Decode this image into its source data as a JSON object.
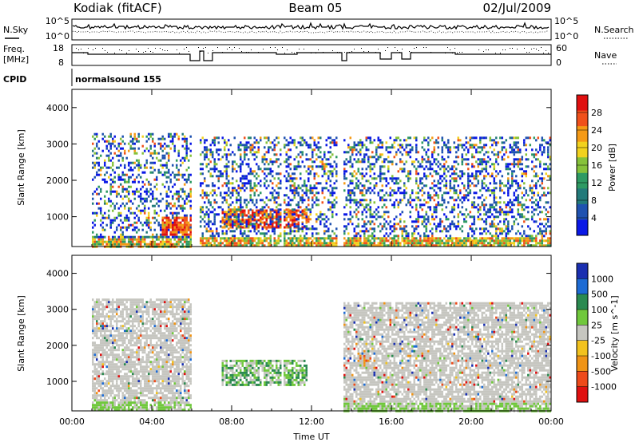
{
  "header": {
    "title_left": "Kodiak (fitACF)",
    "title_center": "Beam 05",
    "title_right": "02/Jul/2009"
  },
  "noise_panel": {
    "left_label": "N.Sky",
    "right_label": "N.Search",
    "ticks_left": [
      "10^5",
      "10^0"
    ],
    "ticks_right": [
      "10^5",
      "10^0"
    ]
  },
  "freq_panel": {
    "left_label_1": "Freq.",
    "left_label_2": "[MHz]",
    "right_label": "Nave",
    "ticks_left": [
      "18",
      "8"
    ],
    "ticks_right": [
      "60",
      "0"
    ]
  },
  "cpid": {
    "label": "CPID",
    "value": "normalsound 155"
  },
  "colors": {
    "power_scale": [
      "#0a18e6",
      "#1f52b0",
      "#237a7a",
      "#2e9a63",
      "#86c23a",
      "#f2d21e",
      "#f59a16",
      "#f0511b",
      "#e01010"
    ],
    "velocity_scale": [
      "#1a2fb0",
      "#1d6bd4",
      "#2a8a50",
      "#70c83c",
      "#c6c6c0",
      "#f2c21e",
      "#f09416",
      "#ee4a1a",
      "#e01010"
    ]
  },
  "chart_data": [
    {
      "type": "heatmap",
      "title": "Power",
      "ylabel": "Slant Range [km]",
      "xlabel": "",
      "ylim": [
        180,
        4500
      ],
      "yticks": [
        1000,
        2000,
        3000,
        4000
      ],
      "xlim": [
        0,
        24
      ],
      "xticks": [
        "00:00",
        "04:00",
        "08:00",
        "12:00",
        "16:00",
        "20:00",
        "00:00"
      ],
      "colorbar": {
        "label": "Power [dB]",
        "ticks": [
          4,
          8,
          12,
          16,
          20,
          24,
          28
        ],
        "range": [
          0,
          32
        ]
      },
      "gaps_hours": [
        [
          6.0,
          6.3
        ],
        [
          10.45,
          10.55
        ],
        [
          13.3,
          13.55
        ]
      ],
      "echo_regions": [
        {
          "x": [
            1.0,
            6.1
          ],
          "y": [
            200,
            3300
          ],
          "level": "mixed"
        },
        {
          "x": [
            4.5,
            6.0
          ],
          "y": [
            500,
            1000
          ],
          "level": "high"
        },
        {
          "x": [
            7.5,
            11.8
          ],
          "y": [
            700,
            1200
          ],
          "level": "high"
        },
        {
          "x": [
            6.4,
            13.3
          ],
          "y": [
            200,
            3200
          ],
          "level": "mixed"
        },
        {
          "x": [
            13.6,
            24.0
          ],
          "y": [
            200,
            3200
          ],
          "level": "mixed"
        }
      ]
    },
    {
      "type": "heatmap",
      "title": "Velocity",
      "ylabel": "Slant Range [km]",
      "xlabel": "Time UT",
      "ylim": [
        180,
        4500
      ],
      "yticks": [
        1000,
        2000,
        3000,
        4000
      ],
      "xlim": [
        0,
        24
      ],
      "xticks": [
        "00:00",
        "04:00",
        "08:00",
        "12:00",
        "16:00",
        "20:00",
        "00:00"
      ],
      "colorbar": {
        "label": "Velocity [m s^-1]",
        "ticks": [
          1000,
          500,
          100,
          25,
          -25,
          -100,
          -500,
          -1000
        ]
      },
      "gaps_hours": [
        [
          6.0,
          6.3
        ],
        [
          10.45,
          10.55
        ],
        [
          13.3,
          13.55
        ]
      ],
      "echo_regions": [
        {
          "x": [
            1.0,
            6.1
          ],
          "y": [
            200,
            3300
          ],
          "level": "near-zero"
        },
        {
          "x": [
            7.5,
            11.8
          ],
          "y": [
            900,
            1600
          ],
          "level": "positive"
        },
        {
          "x": [
            14.3,
            15.0
          ],
          "y": [
            1400,
            1800
          ],
          "level": "negative"
        },
        {
          "x": [
            13.6,
            24.0
          ],
          "y": [
            200,
            3200
          ],
          "level": "near-zero"
        }
      ]
    }
  ]
}
